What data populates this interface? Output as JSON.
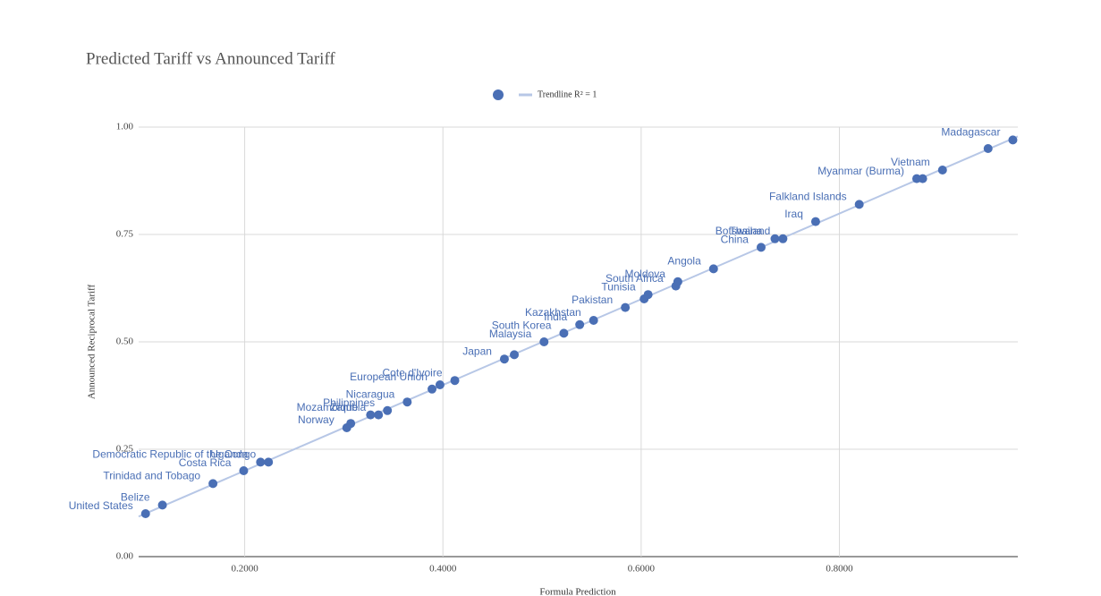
{
  "chart_data": {
    "type": "scatter",
    "title": "Predicted Tariff vs Announced Tariff",
    "x_label": "Formula Prediction",
    "y_label": "Announced Reciprocal Tariff",
    "trendline_label": "Trendline R² = 1",
    "color": "#4a6fb5",
    "trendline_color": "#b7c7e6",
    "grid": true,
    "legend": "top",
    "xlim": [
      0.093,
      0.98
    ],
    "ylim": [
      0,
      1
    ],
    "xticks": [
      {
        "value": 0.2,
        "label": "0.2000"
      },
      {
        "value": 0.4,
        "label": "0.4000"
      },
      {
        "value": 0.6,
        "label": "0.6000"
      },
      {
        "value": 0.8,
        "label": "0.8000"
      }
    ],
    "yticks": [
      {
        "value": 0,
        "label": "0.00"
      },
      0.25,
      {
        "value": 0.5,
        "label": "0.50"
      },
      0.75,
      {
        "value": 1,
        "label": "1.00"
      }
    ],
    "x": [
      0.1,
      0.117,
      0.168,
      0.199,
      0.216,
      0.224,
      0.303,
      0.307,
      0.327,
      0.335,
      0.344,
      0.364,
      0.389,
      0.397,
      0.412,
      0.462,
      0.472,
      0.502,
      0.522,
      0.538,
      0.552,
      0.584,
      0.603,
      0.607,
      0.635,
      0.637,
      0.673,
      0.721,
      0.735,
      0.743,
      0.776,
      0.82,
      0.878,
      0.884,
      0.904,
      0.95,
      0.975
    ],
    "values": [
      0.1,
      0.12,
      0.17,
      0.2,
      0.22,
      0.22,
      0.3,
      0.31,
      0.33,
      0.33,
      0.34,
      0.36,
      0.39,
      0.4,
      0.41,
      0.46,
      0.47,
      0.5,
      0.52,
      0.54,
      0.55,
      0.58,
      0.6,
      0.61,
      0.63,
      0.64,
      0.67,
      0.72,
      0.74,
      0.74,
      0.78,
      0.82,
      0.88,
      0.88,
      0.9,
      0.95,
      0.97
    ],
    "labels": [
      "United States",
      "Belize",
      "Trinidad and Tobago",
      "Costa Rica",
      "Uganda",
      "Democratic Republic of the Congo",
      "Norway",
      null,
      "Mozambique",
      "Zambia",
      "Philippines",
      "Nicaragua",
      null,
      "European Union",
      "Cote d'Ivoire",
      "Japan",
      null,
      "Malaysia",
      "South Korea",
      "India",
      "Kazakhstan",
      "Pakistan",
      null,
      "Tunisia",
      "South Africa",
      "Moldova",
      "Angola",
      "China",
      "Botswana",
      "Thailand",
      "Iraq",
      "Falkland Islands",
      "Myanmar (Burma)",
      null,
      "Vietnam",
      null,
      "Madagascar"
    ]
  }
}
